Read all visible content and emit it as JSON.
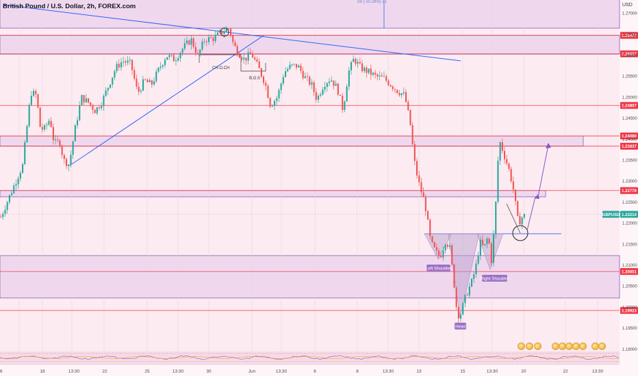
{
  "header": {
    "title": "British Pound / U.S. Dollar, 2h, FOREX.com",
    "currency": "USD",
    "top_truncated_label": "59 (-10.28%) 21"
  },
  "colors": {
    "background": "#fcebf1",
    "candle_up": "#26a69a",
    "candle_down": "#ef5350",
    "level_line": "#f23645",
    "zone_fill": "#e3c9ea",
    "zone_border": "#8e59b5",
    "trendline": "#2962ff",
    "arrow": "#7e57c2",
    "current_price_badge": "#26a69a"
  },
  "chart_data": {
    "type": "candlestick",
    "symbol": "GBPUSD",
    "timeframe": "2h",
    "x_ticks": [
      "6",
      "18",
      "13:30",
      "22",
      "25",
      "13:30",
      "30",
      "Jun",
      "13:30",
      "6",
      "8",
      "13:30",
      "13",
      "15",
      "13:30",
      "20",
      "22",
      "13:30"
    ],
    "y_ticks": [
      "1.27000",
      "1.26500",
      "1.26000",
      "1.25500",
      "1.25000",
      "1.24500",
      "1.24000",
      "1.23500",
      "1.23000",
      "1.22500",
      "1.22000",
      "1.21500",
      "1.21000",
      "1.20500",
      "1.20000",
      "1.19500",
      "1.19000"
    ],
    "ylim": [
      1.1885,
      1.2732
    ],
    "price_levels": [
      {
        "label": "1.26477",
        "value": 1.26477
      },
      {
        "label": "1.26037",
        "value": 1.26037
      },
      {
        "label": "1.24807",
        "value": 1.24807
      },
      {
        "label": "1.24080",
        "value": 1.2408
      },
      {
        "label": "1.23837",
        "value": 1.23837
      },
      {
        "label": "1.22779",
        "value": 1.22779
      },
      {
        "label": "1.20851",
        "value": 1.20851
      },
      {
        "label": "1.19923",
        "value": 1.19923
      }
    ],
    "current_price": {
      "symbol": "GBPUSD",
      "label": "1.22214",
      "value": 1.22214
    },
    "zones": [
      {
        "name": "upper-supply-zone",
        "from": 1.2665,
        "to": 1.2733
      },
      {
        "name": "resistance-zone",
        "from": 1.2603,
        "to": 1.2648
      },
      {
        "name": "target-zone",
        "from": 1.2384,
        "to": 1.2408
      },
      {
        "name": "neckline-retest-zone",
        "from": 1.2263,
        "to": 1.2278
      },
      {
        "name": "demand-zone",
        "from": 1.2022,
        "to": 1.2123
      }
    ],
    "annotations": {
      "choch": "CH.O.CH",
      "bos": "B.O.S",
      "left_shoulder": "Left Shoulder",
      "head": "Head",
      "right_shoulder": "Right Shoulder"
    },
    "anchors": [
      [
        0,
        1.2215
      ],
      [
        32,
        1.2338
      ],
      [
        44,
        1.2512
      ],
      [
        52,
        1.2505
      ],
      [
        58,
        1.2425
      ],
      [
        64,
        1.2425
      ],
      [
        72,
        1.245
      ],
      [
        78,
        1.239
      ],
      [
        86,
        1.2395
      ],
      [
        92,
        1.235
      ],
      [
        100,
        1.234
      ],
      [
        108,
        1.242
      ],
      [
        118,
        1.25
      ],
      [
        128,
        1.2488
      ],
      [
        138,
        1.2468
      ],
      [
        148,
        1.249
      ],
      [
        158,
        1.253
      ],
      [
        168,
        1.257
      ],
      [
        178,
        1.2587
      ],
      [
        190,
        1.258
      ],
      [
        200,
        1.251
      ],
      [
        210,
        1.254
      ],
      [
        220,
        1.253
      ],
      [
        232,
        1.257
      ],
      [
        242,
        1.26
      ],
      [
        254,
        1.259
      ],
      [
        266,
        1.2617
      ],
      [
        278,
        1.2638
      ],
      [
        288,
        1.26
      ],
      [
        298,
        1.2638
      ],
      [
        310,
        1.264
      ],
      [
        322,
        1.2655
      ],
      [
        334,
        1.2665
      ],
      [
        340,
        1.2625
      ],
      [
        348,
        1.2605
      ],
      [
        356,
        1.259
      ],
      [
        366,
        1.2605
      ],
      [
        376,
        1.2572
      ],
      [
        386,
        1.2535
      ],
      [
        394,
        1.2482
      ],
      [
        404,
        1.25
      ],
      [
        414,
        1.256
      ],
      [
        424,
        1.2575
      ],
      [
        434,
        1.2575
      ],
      [
        444,
        1.2548
      ],
      [
        454,
        1.253
      ],
      [
        462,
        1.2495
      ],
      [
        472,
        1.2532
      ],
      [
        482,
        1.2545
      ],
      [
        492,
        1.252
      ],
      [
        500,
        1.247
      ],
      [
        508,
        1.256
      ],
      [
        516,
        1.2592
      ],
      [
        526,
        1.257
      ],
      [
        538,
        1.256
      ],
      [
        548,
        1.255
      ],
      [
        560,
        1.2545
      ],
      [
        570,
        1.253
      ],
      [
        580,
        1.2515
      ],
      [
        590,
        1.2505
      ],
      [
        598,
        1.244
      ],
      [
        604,
        1.235
      ],
      [
        610,
        1.23
      ],
      [
        620,
        1.2245
      ],
      [
        628,
        1.2155
      ],
      [
        636,
        1.213
      ],
      [
        642,
        1.212
      ],
      [
        650,
        1.216
      ],
      [
        656,
        1.214
      ],
      [
        662,
        1.206
      ],
      [
        667,
        1.198
      ],
      [
        672,
        1.1985
      ],
      [
        680,
        1.203
      ],
      [
        688,
        1.206
      ],
      [
        694,
        1.2095
      ],
      [
        700,
        1.2155
      ],
      [
        706,
        1.214
      ],
      [
        712,
        1.217
      ],
      [
        717,
        1.211
      ],
      [
        722,
        1.221
      ],
      [
        728,
        1.24
      ],
      [
        736,
        1.236
      ],
      [
        742,
        1.233
      ],
      [
        748,
        1.229
      ],
      [
        756,
        1.22
      ],
      [
        762,
        1.2215
      ],
      [
        768,
        1.2221
      ]
    ]
  }
}
